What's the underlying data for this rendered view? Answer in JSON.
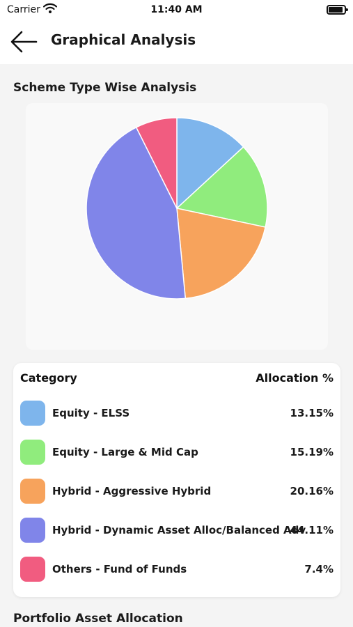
{
  "status_bar": {
    "carrier": "Carrier",
    "time": "11:40 AM"
  },
  "header": {
    "title": "Graphical Analysis"
  },
  "sections": {
    "scheme_title": "Scheme Type Wise Analysis",
    "portfolio_title": "Portfolio Asset Allocation"
  },
  "table": {
    "col_category": "Category",
    "col_allocation": "Allocation %",
    "rows": [
      {
        "label": "Equity - ELSS",
        "value": "13.15%",
        "color": "#7eb5ec"
      },
      {
        "label": "Equity - Large & Mid Cap",
        "value": "15.19%",
        "color": "#90ec7d"
      },
      {
        "label": "Hybrid - Aggressive Hybrid",
        "value": "20.16%",
        "color": "#f7a35c"
      },
      {
        "label": "Hybrid - Dynamic Asset Alloc/Balanced Adv",
        "value": "44.11%",
        "color": "#8085e9"
      },
      {
        "label": "Others - Fund of Funds",
        "value": "7.4%",
        "color": "#f15c80"
      }
    ]
  },
  "chart_data": {
    "type": "pie",
    "categories": [
      "Equity - ELSS",
      "Equity - Large & Mid Cap",
      "Hybrid - Aggressive Hybrid",
      "Hybrid - Dynamic Asset Alloc/Balanced Adv",
      "Others - Fund of Funds"
    ],
    "values": [
      13.15,
      15.19,
      20.16,
      44.11,
      7.4
    ],
    "colors": [
      "#7eb5ec",
      "#90ec7d",
      "#f7a35c",
      "#8085e9",
      "#f15c80"
    ]
  }
}
